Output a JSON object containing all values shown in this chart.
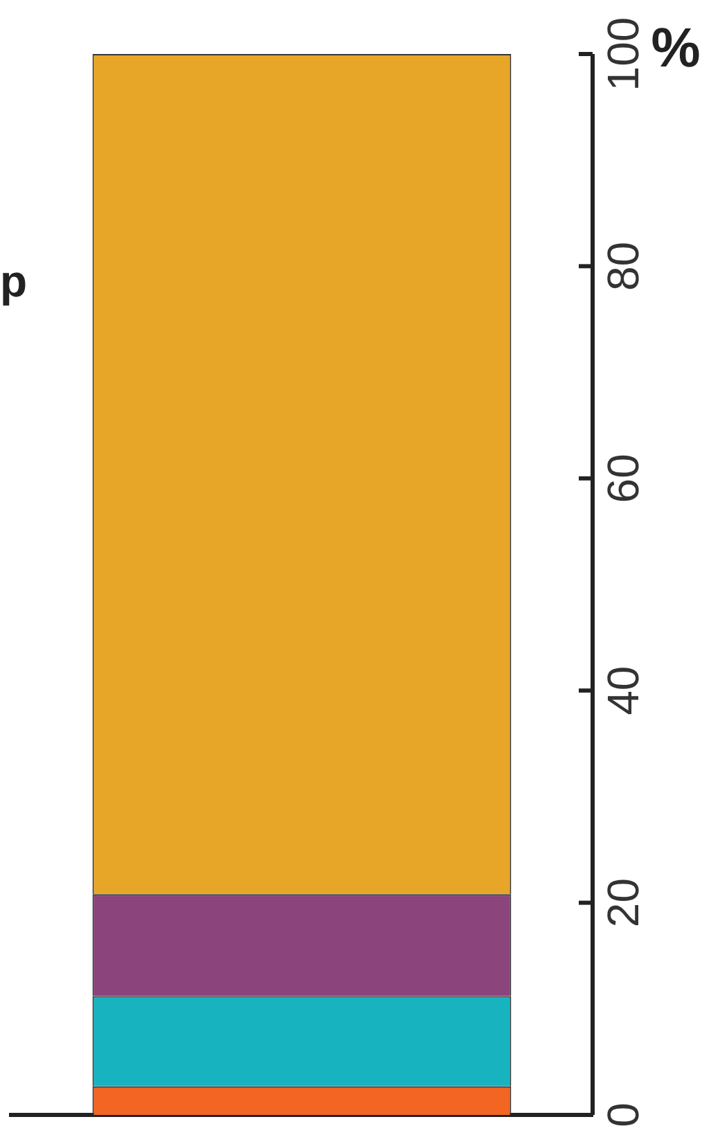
{
  "chart_data": {
    "type": "bar",
    "stacked": true,
    "ylabel": "%",
    "annotations": [
      "p"
    ],
    "categories": [
      null
    ],
    "series": [
      {
        "color": "#f26522",
        "values": [
          2.7
        ]
      },
      {
        "color": "#17b4c0",
        "values": [
          8.5
        ]
      },
      {
        "color": "#8b447c",
        "values": [
          9.6
        ]
      },
      {
        "color": "#e8a628",
        "values": [
          79.2
        ]
      }
    ],
    "ylim": [
      0,
      100
    ],
    "yticks": [
      0,
      20,
      40,
      60,
      80,
      100
    ],
    "grid": false,
    "legend": false
  }
}
